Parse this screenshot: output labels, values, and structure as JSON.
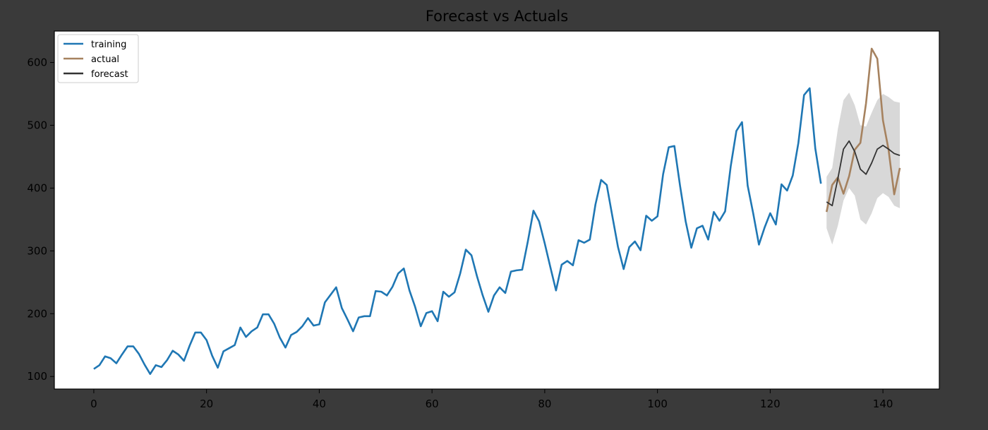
{
  "chart_data": {
    "type": "line",
    "title": "Forecast vs Actuals",
    "xlabel": "",
    "ylabel": "",
    "xlim": [
      -7,
      150
    ],
    "ylim": [
      80,
      650
    ],
    "x_ticks": [
      0,
      20,
      40,
      60,
      80,
      100,
      120,
      140
    ],
    "y_ticks": [
      100,
      200,
      300,
      400,
      500,
      600
    ],
    "grid": false,
    "legend_position": "top-left",
    "series": [
      {
        "name": "training",
        "color": "#1f77b4",
        "x_start": 0,
        "values": [
          112,
          118,
          132,
          129,
          121,
          135,
          148,
          148,
          136,
          119,
          104,
          118,
          115,
          126,
          141,
          135,
          125,
          149,
          170,
          170,
          158,
          133,
          114,
          140,
          145,
          150,
          178,
          163,
          172,
          178,
          199,
          199,
          184,
          162,
          146,
          166,
          171,
          180,
          193,
          181,
          183,
          218,
          230,
          242,
          209,
          191,
          172,
          194,
          196,
          196,
          236,
          235,
          229,
          243,
          264,
          272,
          237,
          211,
          180,
          201,
          204,
          188,
          235,
          227,
          234,
          264,
          302,
          293,
          259,
          229,
          203,
          229,
          242,
          233,
          267,
          269,
          270,
          315,
          364,
          347,
          312,
          274,
          237,
          278,
          284,
          277,
          317,
          313,
          318,
          374,
          413,
          405,
          355,
          306,
          271,
          306,
          315,
          301,
          356,
          348,
          355,
          422,
          465,
          467,
          404,
          347,
          305,
          336,
          340,
          318,
          362,
          348,
          363,
          435,
          491,
          505,
          404,
          359,
          310,
          337,
          360,
          342,
          406,
          396,
          420,
          472,
          548,
          559,
          463,
          407
        ]
      },
      {
        "name": "actual",
        "color": "#a6825f",
        "x_start": 130,
        "values": [
          362,
          405,
          417,
          391,
          419,
          461,
          472,
          535,
          622,
          606,
          508,
          461,
          390,
          432
        ]
      },
      {
        "name": "forecast",
        "color": "#333333",
        "x_start": 130,
        "values": [
          378,
          372,
          415,
          462,
          475,
          458,
          430,
          422,
          440,
          462,
          468,
          462,
          455,
          452
        ],
        "band_lower": [
          336,
          310,
          340,
          380,
          400,
          388,
          350,
          342,
          360,
          384,
          392,
          386,
          372,
          368
        ],
        "band_upper": [
          418,
          432,
          494,
          540,
          552,
          532,
          500,
          498,
          520,
          540,
          550,
          545,
          538,
          536
        ],
        "band_color": "#d8d8d8"
      }
    ]
  }
}
